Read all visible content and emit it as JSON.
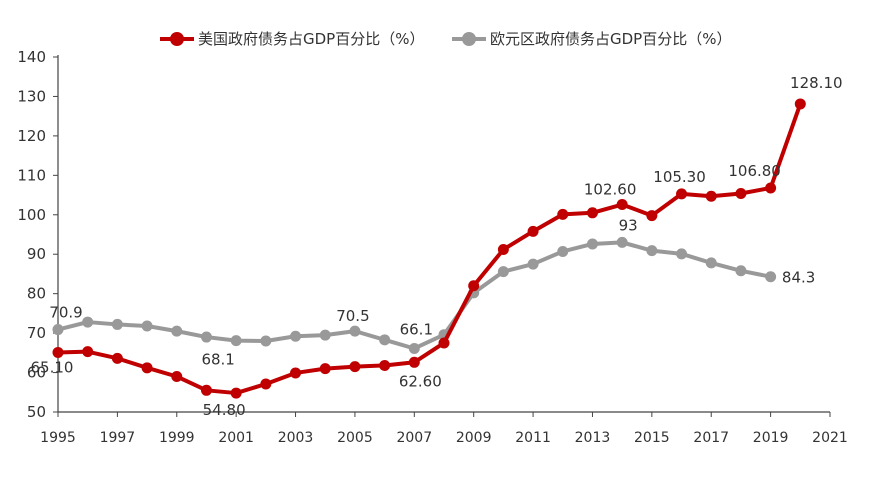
{
  "chart_data": {
    "type": "line",
    "x": [
      1995,
      1996,
      1997,
      1998,
      1999,
      2000,
      2001,
      2002,
      2003,
      2004,
      2005,
      2006,
      2007,
      2008,
      2009,
      2010,
      2011,
      2012,
      2013,
      2014,
      2015,
      2016,
      2017,
      2018,
      2019,
      2020
    ],
    "x_ticks": [
      "1995",
      "1997",
      "1999",
      "2001",
      "2003",
      "2005",
      "2007",
      "2009",
      "2011",
      "2013",
      "2015",
      "2017",
      "2019",
      "2021"
    ],
    "x_tick_values": [
      1995,
      1997,
      1999,
      2001,
      2003,
      2005,
      2007,
      2009,
      2011,
      2013,
      2015,
      2017,
      2019,
      2021
    ],
    "xlim": [
      1995,
      2021
    ],
    "ylim": [
      50,
      140
    ],
    "y_ticks": [
      50,
      60,
      70,
      80,
      90,
      100,
      110,
      120,
      130,
      140
    ],
    "grid": false,
    "legend_position": "top",
    "series": [
      {
        "name": "美国政府债务占GDP百分比（%）",
        "color": "#c00000",
        "values": [
          65.1,
          65.3,
          63.6,
          61.2,
          59.0,
          55.5,
          54.8,
          57.1,
          59.9,
          61.0,
          61.5,
          61.8,
          62.6,
          67.5,
          82.0,
          91.2,
          95.8,
          100.1,
          100.5,
          102.6,
          99.8,
          105.3,
          104.7,
          105.4,
          106.8,
          128.1
        ],
        "labels": [
          {
            "index": 0,
            "text": "65.10"
          },
          {
            "index": 6,
            "text": "54.80"
          },
          {
            "index": 12,
            "text": "62.60"
          },
          {
            "index": 19,
            "text": "102.60"
          },
          {
            "index": 21,
            "text": "105.30"
          },
          {
            "index": 24,
            "text": "106.80"
          },
          {
            "index": 25,
            "text": "128.10"
          }
        ]
      },
      {
        "name": "欧元区政府债务占GDP百分比（%）",
        "color": "#999999",
        "values": [
          70.9,
          72.8,
          72.2,
          71.8,
          70.5,
          69.0,
          68.1,
          68.0,
          69.2,
          69.5,
          70.5,
          68.3,
          66.1,
          69.6,
          80.2,
          85.6,
          87.5,
          90.7,
          92.6,
          93.0,
          90.9,
          90.1,
          87.8,
          85.8,
          84.3,
          null
        ],
        "labels": [
          {
            "index": 0,
            "text": "70.9"
          },
          {
            "index": 6,
            "text": "68.1"
          },
          {
            "index": 10,
            "text": "70.5"
          },
          {
            "index": 12,
            "text": "66.1"
          },
          {
            "index": 19,
            "text": "93"
          },
          {
            "index": 24,
            "text": "84.3"
          }
        ]
      }
    ]
  }
}
